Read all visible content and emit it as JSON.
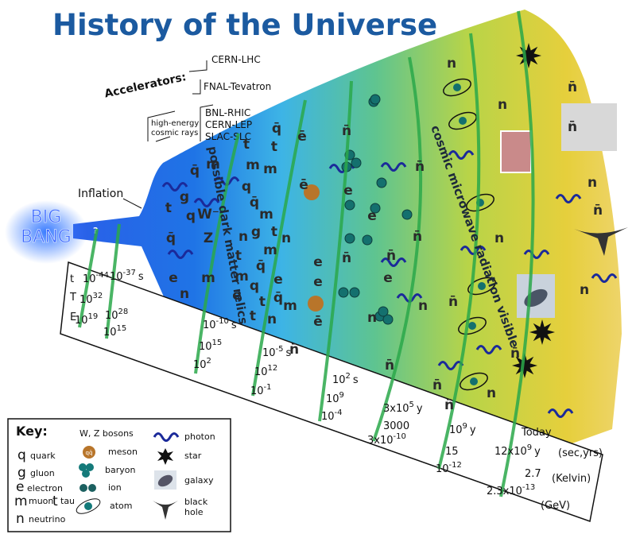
{
  "title": "History of the Universe",
  "accelerators": {
    "label": "Accelerators:",
    "items": [
      "CERN-LHC",
      "FNAL-Tevatron",
      "BNL-RHIC",
      "CERN-LEP",
      "SLAC-SLC"
    ],
    "cosmic_rays": [
      "high-energy",
      "cosmic rays"
    ]
  },
  "inflation": "Inflation",
  "big_bang": [
    "BIG",
    "BANG"
  ],
  "big_bang_mark": "?",
  "annotations": [
    "possible dark matter relics",
    "cosmic microwave radiation visible"
  ],
  "particles": [
    "q̄",
    "g",
    "t",
    "q",
    "W⁻",
    "Z",
    "m",
    "t",
    "m",
    "q",
    "q̄",
    "t",
    "m",
    "q̄",
    "m",
    "t",
    "g",
    "n",
    "q̄",
    "e",
    "n",
    "m",
    "t",
    "m",
    "e",
    "n",
    "m",
    "q̄",
    "e",
    "q",
    "t",
    "q̄",
    "m",
    "n",
    "t",
    "ē",
    "ē",
    "n̄",
    "e",
    "n̄",
    "e",
    "e",
    "ē",
    "n̄",
    "e",
    "n̄",
    "e",
    "n̄",
    "n",
    "n̄",
    "n",
    "n̄",
    "n",
    "n̄",
    "n̄",
    "n̄",
    "n",
    "n",
    "n",
    "n̄",
    "n̄",
    "n̄",
    "n",
    "n̄",
    "n"
  ],
  "meson_symbol": "qq̄",
  "timeline": {
    "row_labels": [
      "t",
      "T",
      "E"
    ],
    "columns": [
      {
        "t": {
          "base": "10",
          "exp": "-44"
        },
        "T": {
          "base": "10",
          "exp": "32"
        },
        "E": {
          "base": "10",
          "exp": "19"
        }
      },
      {
        "t": {
          "base": "10",
          "exp": "-37",
          "unit": "s"
        },
        "T": {
          "base": "10",
          "exp": "28"
        },
        "E": {
          "base": "10",
          "exp": "15"
        }
      },
      {
        "t": {
          "base": "10",
          "exp": "-10",
          "unit": "s"
        },
        "T": {
          "base": "10",
          "exp": "15"
        },
        "E": {
          "base": "10",
          "exp": "2"
        }
      },
      {
        "t": {
          "base": "10",
          "exp": "-5",
          "unit": "s"
        },
        "T": {
          "base": "10",
          "exp": "12"
        },
        "E": {
          "base": "10",
          "exp": "-1"
        }
      },
      {
        "t": {
          "base": "10",
          "exp": "2",
          "unit": "s"
        },
        "T": {
          "base": "10",
          "exp": "9"
        },
        "E": {
          "base": "10",
          "exp": "-4"
        }
      },
      {
        "t": {
          "base": "3x10",
          "exp": "5",
          "unit": "y"
        },
        "T": {
          "base": "3000"
        },
        "E": {
          "base": "3x10",
          "exp": "-10"
        }
      },
      {
        "t": {
          "base": "10",
          "exp": "9",
          "unit": "y"
        },
        "T": {
          "base": "15"
        },
        "E": {
          "base": "10",
          "exp": "-12"
        }
      },
      {
        "t": {
          "base": "12x10",
          "exp": "9",
          "unit": "y"
        },
        "T": {
          "base": "2.7"
        },
        "E": {
          "base": "2.3x10",
          "exp": "-13"
        }
      }
    ],
    "today": "Today",
    "units": [
      "(sec,yrs)",
      "(Kelvin)",
      "(GeV)"
    ]
  },
  "key": {
    "title": "Key:",
    "particles": [
      {
        "symbol": "q",
        "label": "quark"
      },
      {
        "symbol": "g",
        "label": "gluon"
      },
      {
        "symbol": "e",
        "label": "electron"
      },
      {
        "symbol": "m",
        "label": "muon"
      },
      {
        "symbol": "t",
        "label": "tau"
      },
      {
        "symbol": "n",
        "label": "neutrino"
      }
    ],
    "bosons": "W, Z bosons",
    "composites": [
      "meson",
      "baryon",
      "ion",
      "atom"
    ],
    "objects": [
      "photon",
      "star",
      "galaxy"
    ],
    "black_hole": [
      "black",
      "hole"
    ]
  }
}
